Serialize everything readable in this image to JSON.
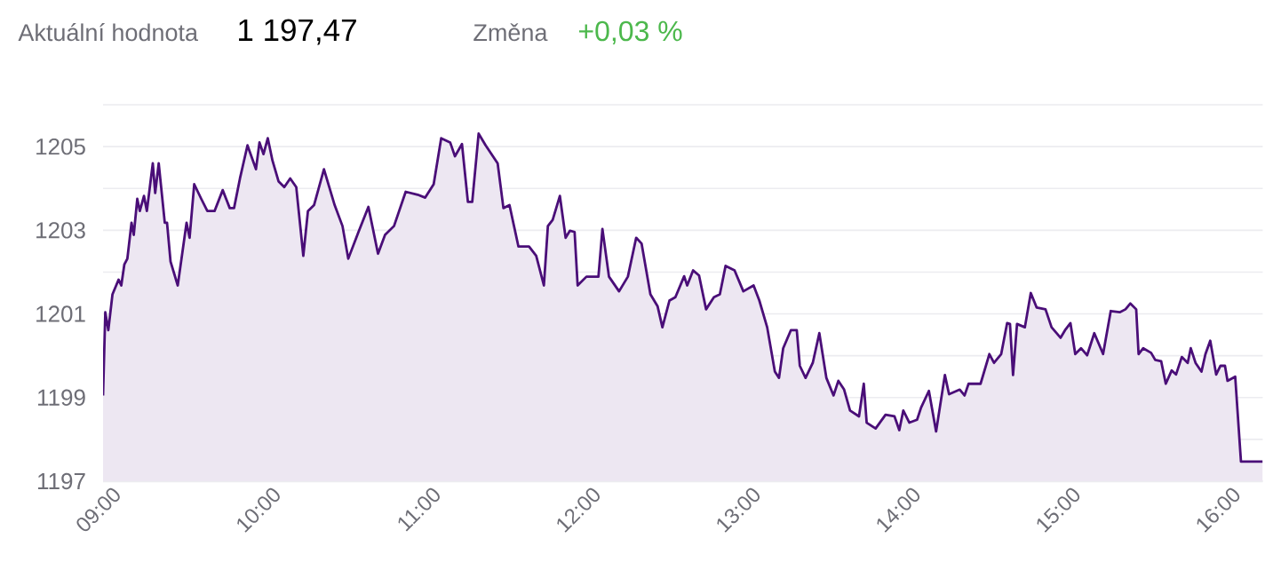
{
  "chart_data": {
    "type": "area",
    "color": "#4a0e78",
    "annotations": [
      "Aktuální hodnota",
      "1 197,47",
      "Změna",
      "+0,03 %"
    ],
    "x": [
      9.0,
      9.014,
      9.033,
      9.059,
      9.097,
      9.114,
      9.133,
      9.152,
      9.178,
      9.192,
      9.214,
      9.23,
      9.256,
      9.274,
      9.311,
      9.326,
      9.348,
      9.386,
      9.4,
      9.422,
      9.467,
      9.522,
      9.541,
      9.57,
      9.614,
      9.652,
      9.697,
      9.748,
      9.792,
      9.819,
      9.856,
      9.903,
      9.956,
      9.978,
      10.003,
      10.03,
      10.059,
      10.097,
      10.133,
      10.17,
      10.208,
      10.252,
      10.281,
      10.319,
      10.381,
      10.448,
      10.497,
      10.533,
      10.597,
      10.659,
      10.719,
      10.763,
      10.819,
      10.892,
      10.967,
      11.014,
      11.067,
      11.114,
      11.17,
      11.2,
      11.244,
      11.281,
      11.308,
      11.348,
      11.392,
      11.467,
      11.503,
      11.541,
      11.597,
      11.663,
      11.708,
      11.756,
      11.781,
      11.811,
      11.856,
      11.892,
      11.919,
      11.948,
      11.967,
      12.022,
      12.097,
      12.122,
      12.163,
      12.226,
      12.281,
      12.333,
      12.367,
      12.422,
      12.467,
      12.497,
      12.541,
      12.578,
      12.633,
      12.652,
      12.689,
      12.726,
      12.77,
      12.819,
      12.856,
      12.892,
      12.948,
      13.003,
      13.067,
      13.103,
      13.152,
      13.2,
      13.226,
      13.252,
      13.3,
      13.337,
      13.356,
      13.392,
      13.437,
      13.478,
      13.522,
      13.567,
      13.597,
      13.633,
      13.67,
      13.726,
      13.756,
      13.774,
      13.83,
      13.892,
      13.948,
      13.978,
      14.003,
      14.041,
      14.089,
      14.114,
      14.163,
      14.208,
      14.263,
      14.289,
      14.356,
      14.386,
      14.411,
      14.486,
      14.541,
      14.57,
      14.615,
      14.652,
      14.67,
      14.689,
      14.714,
      14.763,
      14.8,
      14.837,
      14.892,
      14.93,
      14.986,
      15.014,
      15.048,
      15.078,
      15.114,
      15.152,
      15.197,
      15.252,
      15.3,
      15.356,
      15.392,
      15.422,
      15.459,
      15.474,
      15.503,
      15.552,
      15.578,
      15.615,
      15.644,
      15.681,
      15.708,
      15.744,
      15.781,
      15.8,
      15.83,
      15.867,
      15.892,
      15.922,
      15.959,
      15.986,
      16.014,
      16.03,
      16.078,
      16.114,
      16.25
    ],
    "values": [
      1199.05,
      1201.04,
      1200.61,
      1201.47,
      1201.82,
      1201.68,
      1202.18,
      1202.32,
      1203.18,
      1202.89,
      1203.75,
      1203.46,
      1203.82,
      1203.46,
      1204.6,
      1203.89,
      1204.6,
      1203.18,
      1203.18,
      1202.25,
      1201.68,
      1203.18,
      1202.82,
      1204.1,
      1203.75,
      1203.46,
      1203.46,
      1203.96,
      1203.53,
      1203.53,
      1204.24,
      1205.03,
      1204.46,
      1205.1,
      1204.82,
      1205.2,
      1204.67,
      1204.17,
      1204.03,
      1204.24,
      1204.03,
      1202.39,
      1203.46,
      1203.6,
      1204.46,
      1203.6,
      1203.1,
      1202.32,
      1202.96,
      1203.56,
      1202.44,
      1202.89,
      1203.1,
      1203.92,
      1203.85,
      1203.78,
      1204.1,
      1205.2,
      1205.1,
      1204.77,
      1205.06,
      1203.68,
      1203.68,
      1205.31,
      1205.03,
      1204.6,
      1203.53,
      1203.6,
      1202.61,
      1202.61,
      1202.39,
      1201.68,
      1203.1,
      1203.25,
      1203.82,
      1202.82,
      1202.99,
      1202.96,
      1201.68,
      1201.89,
      1201.89,
      1203.03,
      1201.89,
      1201.54,
      1201.89,
      1202.82,
      1202.68,
      1201.47,
      1201.18,
      1200.68,
      1201.32,
      1201.4,
      1201.9,
      1201.68,
      1202.04,
      1201.92,
      1201.11,
      1201.4,
      1201.47,
      1202.15,
      1202.04,
      1201.54,
      1201.68,
      1201.32,
      1200.68,
      1199.62,
      1199.47,
      1200.18,
      1200.61,
      1200.61,
      1199.76,
      1199.47,
      1199.83,
      1200.54,
      1199.47,
      1199.05,
      1199.4,
      1199.19,
      1198.69,
      1198.55,
      1199.33,
      1198.4,
      1198.26,
      1198.59,
      1198.55,
      1198.22,
      1198.69,
      1198.4,
      1198.47,
      1198.76,
      1199.16,
      1198.19,
      1199.54,
      1199.08,
      1199.19,
      1199.05,
      1199.33,
      1199.33,
      1200.04,
      1199.83,
      1200.04,
      1200.78,
      1200.76,
      1199.54,
      1200.76,
      1200.68,
      1201.5,
      1201.15,
      1201.11,
      1200.68,
      1200.43,
      1200.61,
      1200.78,
      1200.04,
      1200.18,
      1200.01,
      1200.54,
      1200.04,
      1201.07,
      1201.04,
      1201.11,
      1201.25,
      1201.11,
      1200.04,
      1200.18,
      1200.07,
      1199.9,
      1199.87,
      1199.33,
      1199.65,
      1199.55,
      1199.97,
      1199.83,
      1200.18,
      1199.83,
      1199.62,
      1200.04,
      1200.36,
      1199.55,
      1199.76,
      1199.76,
      1199.4,
      1199.5,
      1197.47,
      1197.47
    ],
    "xlim": [
      9,
      16.25
    ],
    "xticks": [
      {
        "value": 9,
        "label": "09:00"
      },
      {
        "value": 10,
        "label": "10:00"
      },
      {
        "value": 11,
        "label": "11:00"
      },
      {
        "value": 12,
        "label": "12:00"
      },
      {
        "value": 13,
        "label": "13:00"
      },
      {
        "value": 14,
        "label": "14:00"
      },
      {
        "value": 15,
        "label": "15:00"
      },
      {
        "value": 16,
        "label": "16:00"
      }
    ],
    "ylim": [
      1197,
      1206
    ],
    "yticks": [
      1197,
      {
        "value": 1198,
        "label": null
      },
      1199,
      {
        "value": 1200,
        "label": null
      },
      1201,
      {
        "value": 1202,
        "label": null
      },
      1203,
      {
        "value": 1204,
        "label": null
      },
      1205,
      {
        "value": 1206,
        "label": null
      }
    ],
    "grid": "y"
  }
}
